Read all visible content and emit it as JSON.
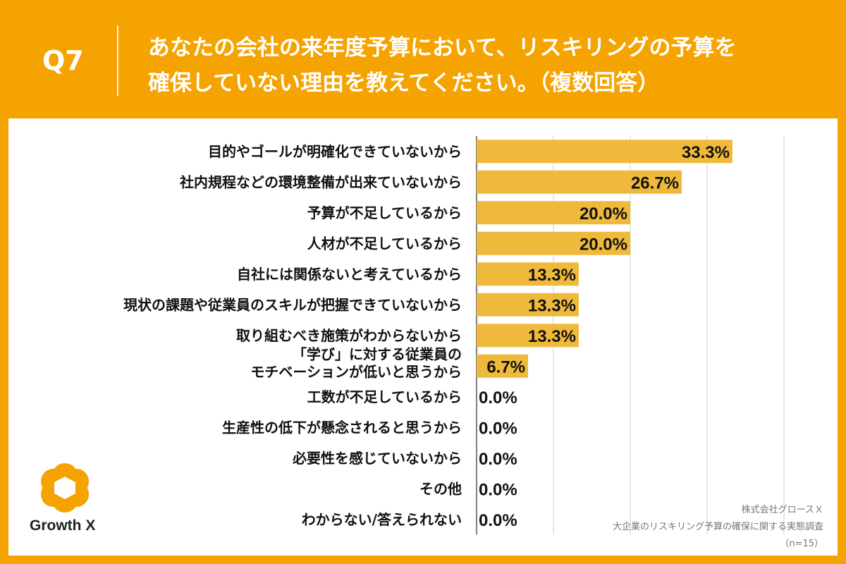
{
  "header": {
    "qnum": "Q7",
    "question_line1": "あなたの会社の来年度予算において、リスキリングの予算を",
    "question_line2": "確保していない理由を教えてください。（複数回答）"
  },
  "logo": {
    "name": "Growth X"
  },
  "source": {
    "company": "株式会社グロースＸ",
    "survey": "大企業のリスキリング予算の確保に関する実態調査",
    "sample": "（n=15）"
  },
  "colors": {
    "background": "#f5a300",
    "bar": "#efba3c",
    "grid": "#cfcfcf"
  },
  "chart_data": {
    "type": "bar",
    "orientation": "horizontal",
    "categories": [
      [
        "目的やゴールが明確化できていないから"
      ],
      [
        "社内規程などの環境整備が出来ていないから"
      ],
      [
        "予算が不足しているから"
      ],
      [
        "人材が不足しているから"
      ],
      [
        "自社には関係ないと考えているから"
      ],
      [
        "現状の課題や従業員のスキルが把握できていないから"
      ],
      [
        "取り組むべき施策がわからないから"
      ],
      [
        "「学び」に対する従業員の",
        "モチベーションが低いと思うから"
      ],
      [
        "工数が不足しているから"
      ],
      [
        "生産性の低下が懸念されると思うから"
      ],
      [
        "必要性を感じていないから"
      ],
      [
        "その他"
      ],
      [
        "わからない/答えられない"
      ]
    ],
    "values": [
      33.3,
      26.7,
      20.0,
      20.0,
      13.3,
      13.3,
      13.3,
      6.7,
      0.0,
      0.0,
      0.0,
      0.0,
      0.0
    ],
    "value_labels": [
      "33.3%",
      "26.7%",
      "20.0%",
      "20.0%",
      "13.3%",
      "13.3%",
      "13.3%",
      "6.7%",
      "0.0%",
      "0.0%",
      "0.0%",
      "0.0%",
      "0.0%"
    ],
    "xlim": [
      0,
      40
    ],
    "grid": true
  }
}
